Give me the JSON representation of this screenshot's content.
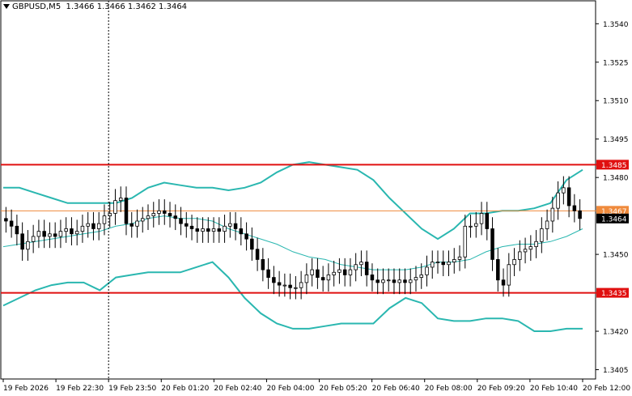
{
  "header": {
    "symbol_label": "GBPUSD,M5",
    "ohlc_label": "1.3466 1.3466 1.3462 1.3464"
  },
  "colors": {
    "background": "#ffffff",
    "bull_candle": "#ffffff",
    "bear_candle": "#000000",
    "bollinger": "#2ab7b0",
    "moving_average": "#2ab7b0",
    "resistance_line": "#e01010",
    "support_line": "#e01010",
    "price_line": "#ef8a3c",
    "axis": "#000000"
  },
  "chart_data": {
    "type": "candlestick",
    "symbol": "GBPUSD",
    "timeframe": "M5",
    "ylim": [
      1.3402,
      1.3548
    ],
    "y_ticks": [
      "1.3540",
      "1.3525",
      "1.3510",
      "1.3495",
      "1.3480",
      "1.3450",
      "1.3420",
      "1.3405"
    ],
    "x_ticks": [
      "19 Feb 2026",
      "19 Feb 22:30",
      "19 Feb 23:50",
      "20 Feb 01:20",
      "20 Feb 02:40",
      "20 Feb 04:00",
      "20 Feb 05:20",
      "20 Feb 06:40",
      "20 Feb 08:00",
      "20 Feb 09:20",
      "20 Feb 10:40",
      "20 Feb 12:00"
    ],
    "horizontal_levels": [
      {
        "value": 1.3485,
        "label": "1.3485",
        "kind": "resistance"
      },
      {
        "value": 1.3435,
        "label": "1.3435",
        "kind": "support"
      },
      {
        "value": 1.3467,
        "label": "1.3467",
        "kind": "level"
      }
    ],
    "current_price": {
      "value": 1.3464,
      "label": "1.3464"
    },
    "crosshair_time_index": 2,
    "candles": [
      1.3463,
      1.3461,
      1.3458,
      1.3452,
      1.3455,
      1.3457,
      1.3459,
      1.3457,
      1.3458,
      1.3457,
      1.3459,
      1.346,
      1.3458,
      1.3459,
      1.3461,
      1.3462,
      1.346,
      1.3462,
      1.3465,
      1.3466,
      1.3471,
      1.3472,
      1.3462,
      1.3461,
      1.3463,
      1.3464,
      1.3465,
      1.3466,
      1.3467,
      1.3466,
      1.3465,
      1.3464,
      1.3462,
      1.3461,
      1.346,
      1.3459,
      1.346,
      1.3459,
      1.346,
      1.3459,
      1.3461,
      1.3462,
      1.346,
      1.3458,
      1.3456,
      1.3452,
      1.3448,
      1.3444,
      1.3441,
      1.3439,
      1.3438,
      1.3438,
      1.3437,
      1.3437,
      1.3439,
      1.3442,
      1.3444,
      1.3441,
      1.344,
      1.3442,
      1.3443,
      1.3444,
      1.3442,
      1.3444,
      1.3446,
      1.3447,
      1.3442,
      1.344,
      1.3439,
      1.344,
      1.344,
      1.3439,
      1.344,
      1.3439,
      1.344,
      1.3441,
      1.3442,
      1.3445,
      1.3447,
      1.3447,
      1.3446,
      1.3447,
      1.3448,
      1.3449,
      1.3461,
      1.3461,
      1.3462,
      1.3466,
      1.346,
      1.3448,
      1.344,
      1.3438,
      1.3446,
      1.3448,
      1.3451,
      1.3452,
      1.3453,
      1.3455,
      1.346,
      1.3463,
      1.3468,
      1.3474,
      1.3476,
      1.3469,
      1.3467,
      1.3464
    ],
    "bollinger_upper": [
      1.3476,
      1.3476,
      1.3474,
      1.3472,
      1.347,
      1.347,
      1.347,
      1.347,
      1.3472,
      1.3476,
      1.3478,
      1.3477,
      1.3476,
      1.3476,
      1.3475,
      1.3476,
      1.3478,
      1.3482,
      1.3485,
      1.3486,
      1.3485,
      1.3484,
      1.3483,
      1.3479,
      1.3472,
      1.3466,
      1.346,
      1.3456,
      1.346,
      1.3466,
      1.3466,
      1.3467,
      1.3467,
      1.3468,
      1.347,
      1.3479,
      1.3483
    ],
    "bollinger_mid": [
      1.3453,
      1.3454,
      1.3455,
      1.3456,
      1.3457,
      1.3458,
      1.3459,
      1.3461,
      1.3462,
      1.3464,
      1.3465,
      1.3464,
      1.3464,
      1.3463,
      1.346,
      1.3458,
      1.3456,
      1.3454,
      1.3451,
      1.3449,
      1.3448,
      1.3446,
      1.3445,
      1.3444,
      1.3444,
      1.3444,
      1.3445,
      1.3447,
      1.3447,
      1.3448,
      1.3451,
      1.3453,
      1.3454,
      1.3454,
      1.3455,
      1.3457,
      1.346
    ],
    "bollinger_lower": [
      1.343,
      1.3433,
      1.3436,
      1.3438,
      1.3439,
      1.3439,
      1.3436,
      1.3441,
      1.3442,
      1.3443,
      1.3443,
      1.3443,
      1.3445,
      1.3447,
      1.3441,
      1.3433,
      1.3427,
      1.3423,
      1.3421,
      1.3421,
      1.3422,
      1.3423,
      1.3423,
      1.3423,
      1.3429,
      1.3433,
      1.3431,
      1.3425,
      1.3424,
      1.3424,
      1.3425,
      1.3425,
      1.3424,
      1.342,
      1.342,
      1.3421,
      1.3421
    ]
  }
}
